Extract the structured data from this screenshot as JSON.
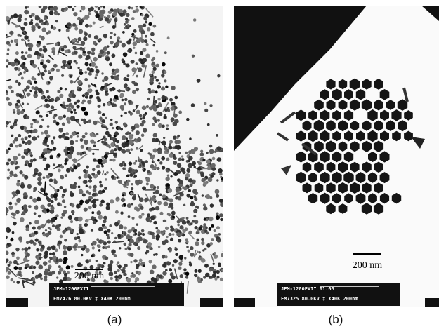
{
  "panels": [
    {
      "label": "(a)",
      "scale_bar": "200 nm",
      "info_line1": "JEM-1200EXII",
      "info_line2": "EM7476 80.0KV ‡ X40K 200nm"
    },
    {
      "label": "(b)",
      "scale_bar": "200 nm",
      "info_line1": "JEM-1200EXII 01.03",
      "info_line2": "EM7325 80.0KV ‡ X40K 200nm"
    }
  ]
}
